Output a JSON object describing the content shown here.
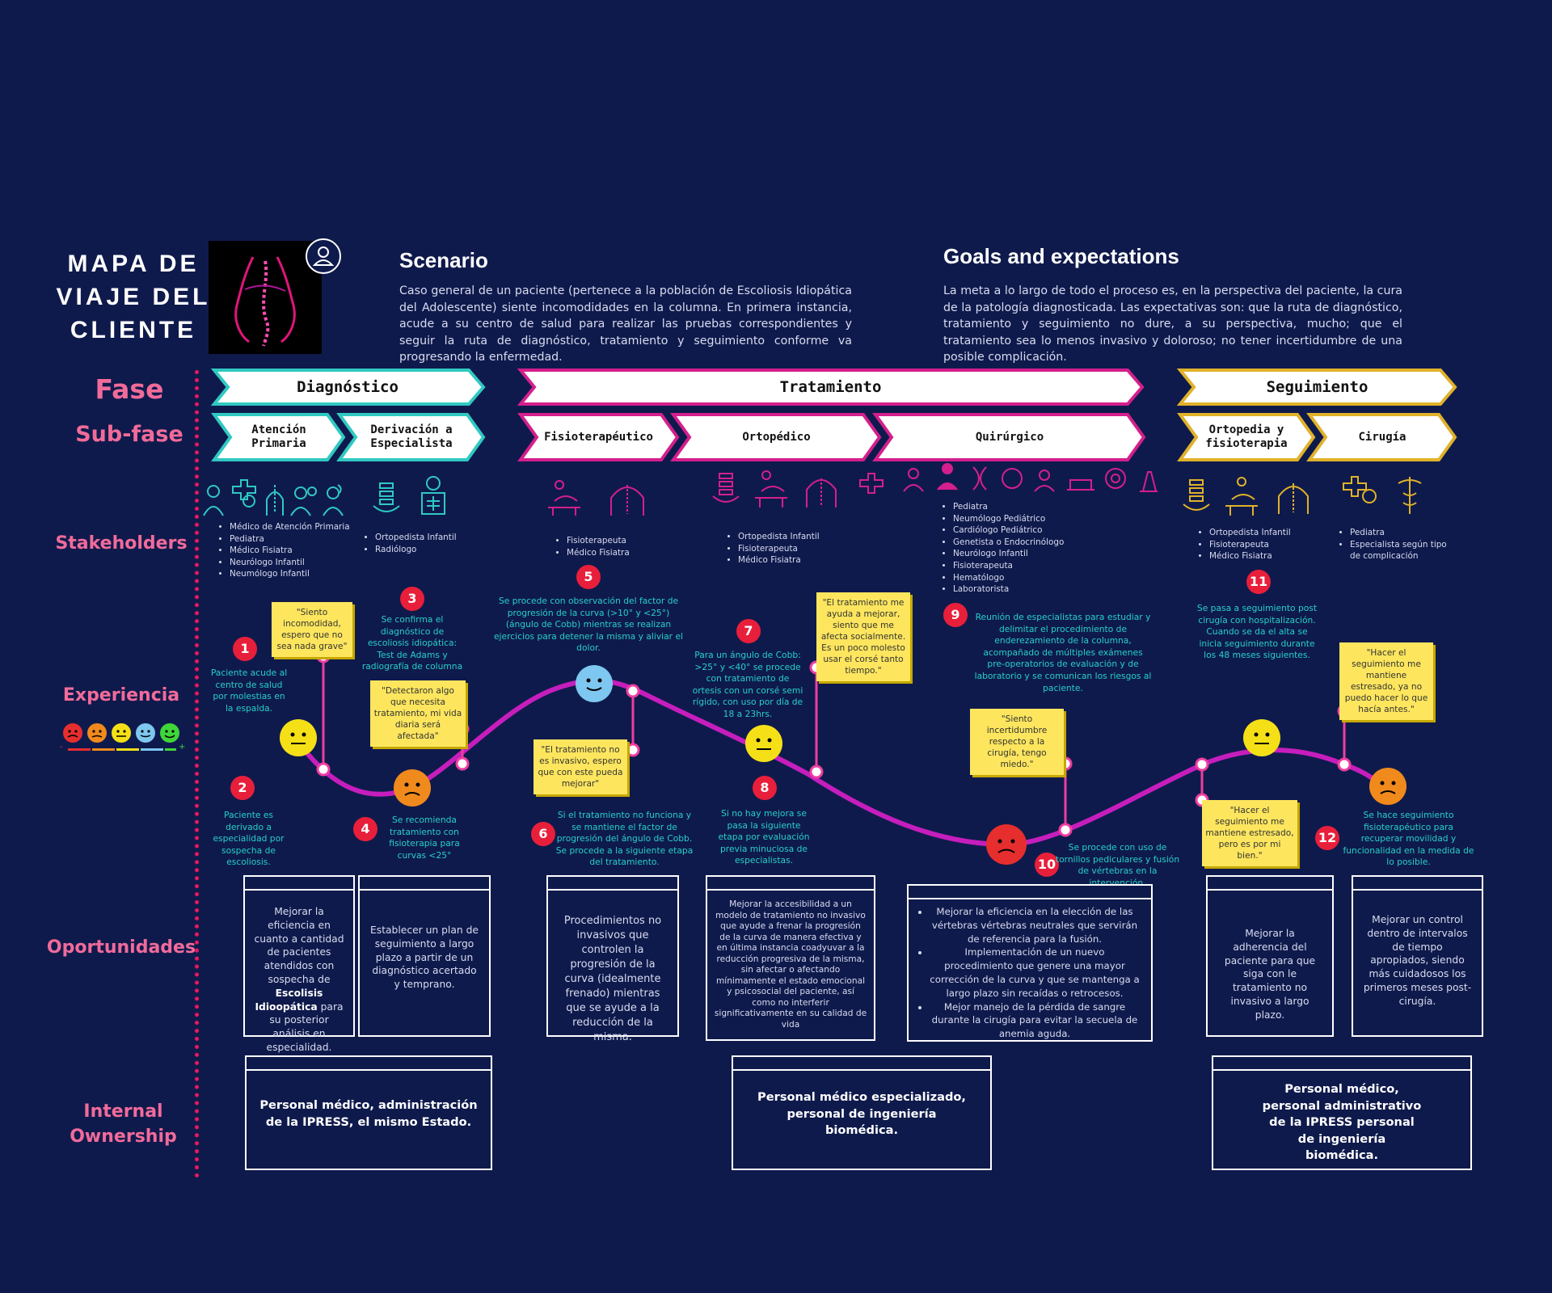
{
  "title": "MAPA DE VIAJE DEL CLIENTE",
  "scenario": {
    "heading": "Scenario",
    "text": "Caso general de un paciente (pertenece a la población de Escoliosis Idiopática del Adolescente) siente incomodidades en la columna. En primera instancia, acude a su centro de salud para realizar las pruebas correspondientes y seguir la ruta de diagnóstico, tratamiento y seguimiento conforme va progresando la enfermedad."
  },
  "goals": {
    "heading": "Goals and expectations",
    "text": "La meta a lo largo de todo el proceso es, en la perspectiva del paciente, la cura de la patología diagnosticada. Las expectativas son: que la ruta de diagnóstico, tratamiento y seguimiento no dure, a su perspectiva, mucho; que el tratamiento sea lo menos invasivo y doloroso; no tener incertidumbre de una posible complicación."
  },
  "row_labels": {
    "fase": "Fase",
    "subfase": "Sub-fase",
    "stakeholders": "Stakeholders",
    "experiencia": "Experiencia",
    "oportunidades": "Oportunidades",
    "ownership": "Internal Ownership"
  },
  "phases": [
    "Diagnóstico",
    "Tratamiento",
    "Seguimiento"
  ],
  "subphases": [
    "Atención Primaria",
    "Derivación a Especialista",
    "Fisioterapéutico",
    "Ortopédico",
    "Quirúrgico",
    "Ortopedia y fisioterapia",
    "Cirugía"
  ],
  "colors": {
    "diagnostico": "#2fc9c2",
    "tratamiento": "#d41f8c",
    "seguimiento": "#e0b22a",
    "curve": "#c61ebd",
    "background": "#0f1a4c"
  },
  "stakeholders": [
    [
      "Médico de Atención Primaria",
      "Pediatra",
      "Médico Fisiatra",
      "Neurólogo Infantil",
      "Neumólogo Infantil"
    ],
    [
      "Ortopedista Infantil",
      "Radiólogo"
    ],
    [
      "Fisioterapeuta",
      "Médico Fisiatra"
    ],
    [
      "Ortopedista Infantil",
      "Fisioterapeuta",
      "Médico Fisiatra"
    ],
    [
      "Pediatra",
      "Neumólogo Pediátrico",
      "Cardiólogo Pediátrico",
      "Genetista o Endocrinólogo",
      "Neurólogo Infantil",
      "Fisioterapeuta",
      "Hematólogo",
      "Laboratorista"
    ],
    [
      "Ortopedista Infantil",
      "Fisioterapeuta",
      "Médico Fisiatra"
    ],
    [
      "Pediatra",
      "Especialista según tipo de complicación"
    ]
  ],
  "steps": [
    {
      "n": "1",
      "text": "Paciente acude al centro de salud por molestias en la espalda."
    },
    {
      "n": "2",
      "text": "Paciente es derivado a especialidad por sospecha de escoliosis."
    },
    {
      "n": "3",
      "text": "Se confirma el diagnóstico de escoliosis idiopática: Test de Adams y radiografía de columna"
    },
    {
      "n": "4",
      "text": "Se recomienda tratamiento con fisioterapia para curvas <25°"
    },
    {
      "n": "5",
      "text": "Se procede con observación del factor de progresión de la curva (>10° y <25°) (ángulo de Cobb) mientras se realizan ejercicios para detener la misma y aliviar el dolor."
    },
    {
      "n": "6",
      "text": "Si el tratamiento no funciona y se mantiene el factor de progresión del ángulo de Cobb. Se procede a la siguiente etapa del tratamiento."
    },
    {
      "n": "7",
      "text": "Para un ángulo de Cobb: >25° y <40° se procede con tratamiento de ortesis con un corsé semi rígido, con uso por día de 18 a 23hrs."
    },
    {
      "n": "8",
      "text": "Si no hay mejora se pasa la siguiente etapa por evaluación previa minuciosa de especialistas."
    },
    {
      "n": "9",
      "text": "Reunión de especialistas para estudiar y delimitar el procedimiento de enderezamiento de la columna, acompañado de múltiples exámenes pre-operatorios de evaluación y de laboratorio y se comunican los riesgos al paciente."
    },
    {
      "n": "10",
      "text": "Se procede con uso de tornillos pediculares y fusión de vértebras en la intervención."
    },
    {
      "n": "11",
      "text": "Se pasa a seguimiento post cirugía con hospitalización. Cuando se da el alta se inicia seguimiento durante los 48 meses siguientes."
    },
    {
      "n": "12",
      "text": "Se hace seguimiento fisioterapéutico para recuperar movilidad y funcionalidad en la medida de lo posible."
    }
  ],
  "quotes": [
    "\"Siento incomodidad, espero que no sea nada grave\"",
    "\"Detectaron algo que necesita tratamiento, mi vida diaria será afectada\"",
    "\"El tratamiento no es invasivo, espero que con este pueda mejorar\"",
    "\"El tratamiento me ayuda a mejorar, siento que me afecta socialmente. Es un poco molesto usar el corsé tanto tiempo.\"",
    "\"Siento incertidumbre respecto a la cirugía, tengo miedo.\"",
    "\"Hacer el seguimiento me mantiene estresado, pero es por mi bien.\"",
    "\"Hacer el seguimiento me mantiene estresado, ya no puedo hacer lo que hacía antes.\""
  ],
  "opportunities": [
    {
      "pre": "Mejorar la eficiencia en cuanto a cantidad de pacientes atendidos con sospecha de ",
      "bold": "Escolisis Idioopática",
      "post": " para su posterior análisis en especialidad."
    },
    "Establecer un plan de seguimiento a largo plazo a partir de un diagnóstico acertado y temprano.",
    "Procedimientos no invasivos que controlen la progresión de la curva (idealmente frenado) mientras que se ayude a la reducción de la misma.",
    "Mejorar la accesibilidad a un modelo de tratamiento no invasivo que ayude a frenar la progresión de la curva de manera efectiva y en última instancia coadyuvar a la reducción progresiva de la misma, sin afectar o afectando mínimamente el estado emocional y psicosocial del paciente, así como no interferir significativamente en su calidad de vida",
    [
      "Mejorar la eficiencia en la elección de las vértebras vértebras neutrales que servirán de referencia para la fusión.",
      "Implementación de un nuevo procedimiento que genere una mayor corrección de la curva y que se mantenga a largo plazo sin recaídas o retrocesos.",
      "Mejor manejo de la pérdida de sangre durante la cirugía para evitar la secuela de anemia aguda."
    ],
    "Mejorar la adherencia del paciente para que siga con le tratamiento no invasivo a largo plazo.",
    "Mejorar un control dentro de intervalos de tiempo apropiados, siendo más cuidadosos los primeros meses post-cirugía."
  ],
  "ownership": [
    "Personal médico, administración de la IPRESS, el mismo Estado.",
    "Personal médico especializado, personal de ingeniería biomédica.",
    "Personal médico, personal administrativo de la IPRESS personal de ingeniería biomédica."
  ],
  "legend_faces": [
    "very-sad",
    "sad",
    "neutral",
    "content",
    "happy"
  ],
  "legend_signs": [
    "-",
    "+"
  ],
  "emotion_levels": [
    {
      "step": "1",
      "mood": "neutral"
    },
    {
      "step": "4",
      "mood": "sad"
    },
    {
      "step": "5",
      "mood": "content"
    },
    {
      "step": "7",
      "mood": "neutral"
    },
    {
      "step": "10",
      "mood": "very-sad"
    },
    {
      "step": "11",
      "mood": "neutral"
    },
    {
      "step": "12",
      "mood": "sad"
    }
  ]
}
